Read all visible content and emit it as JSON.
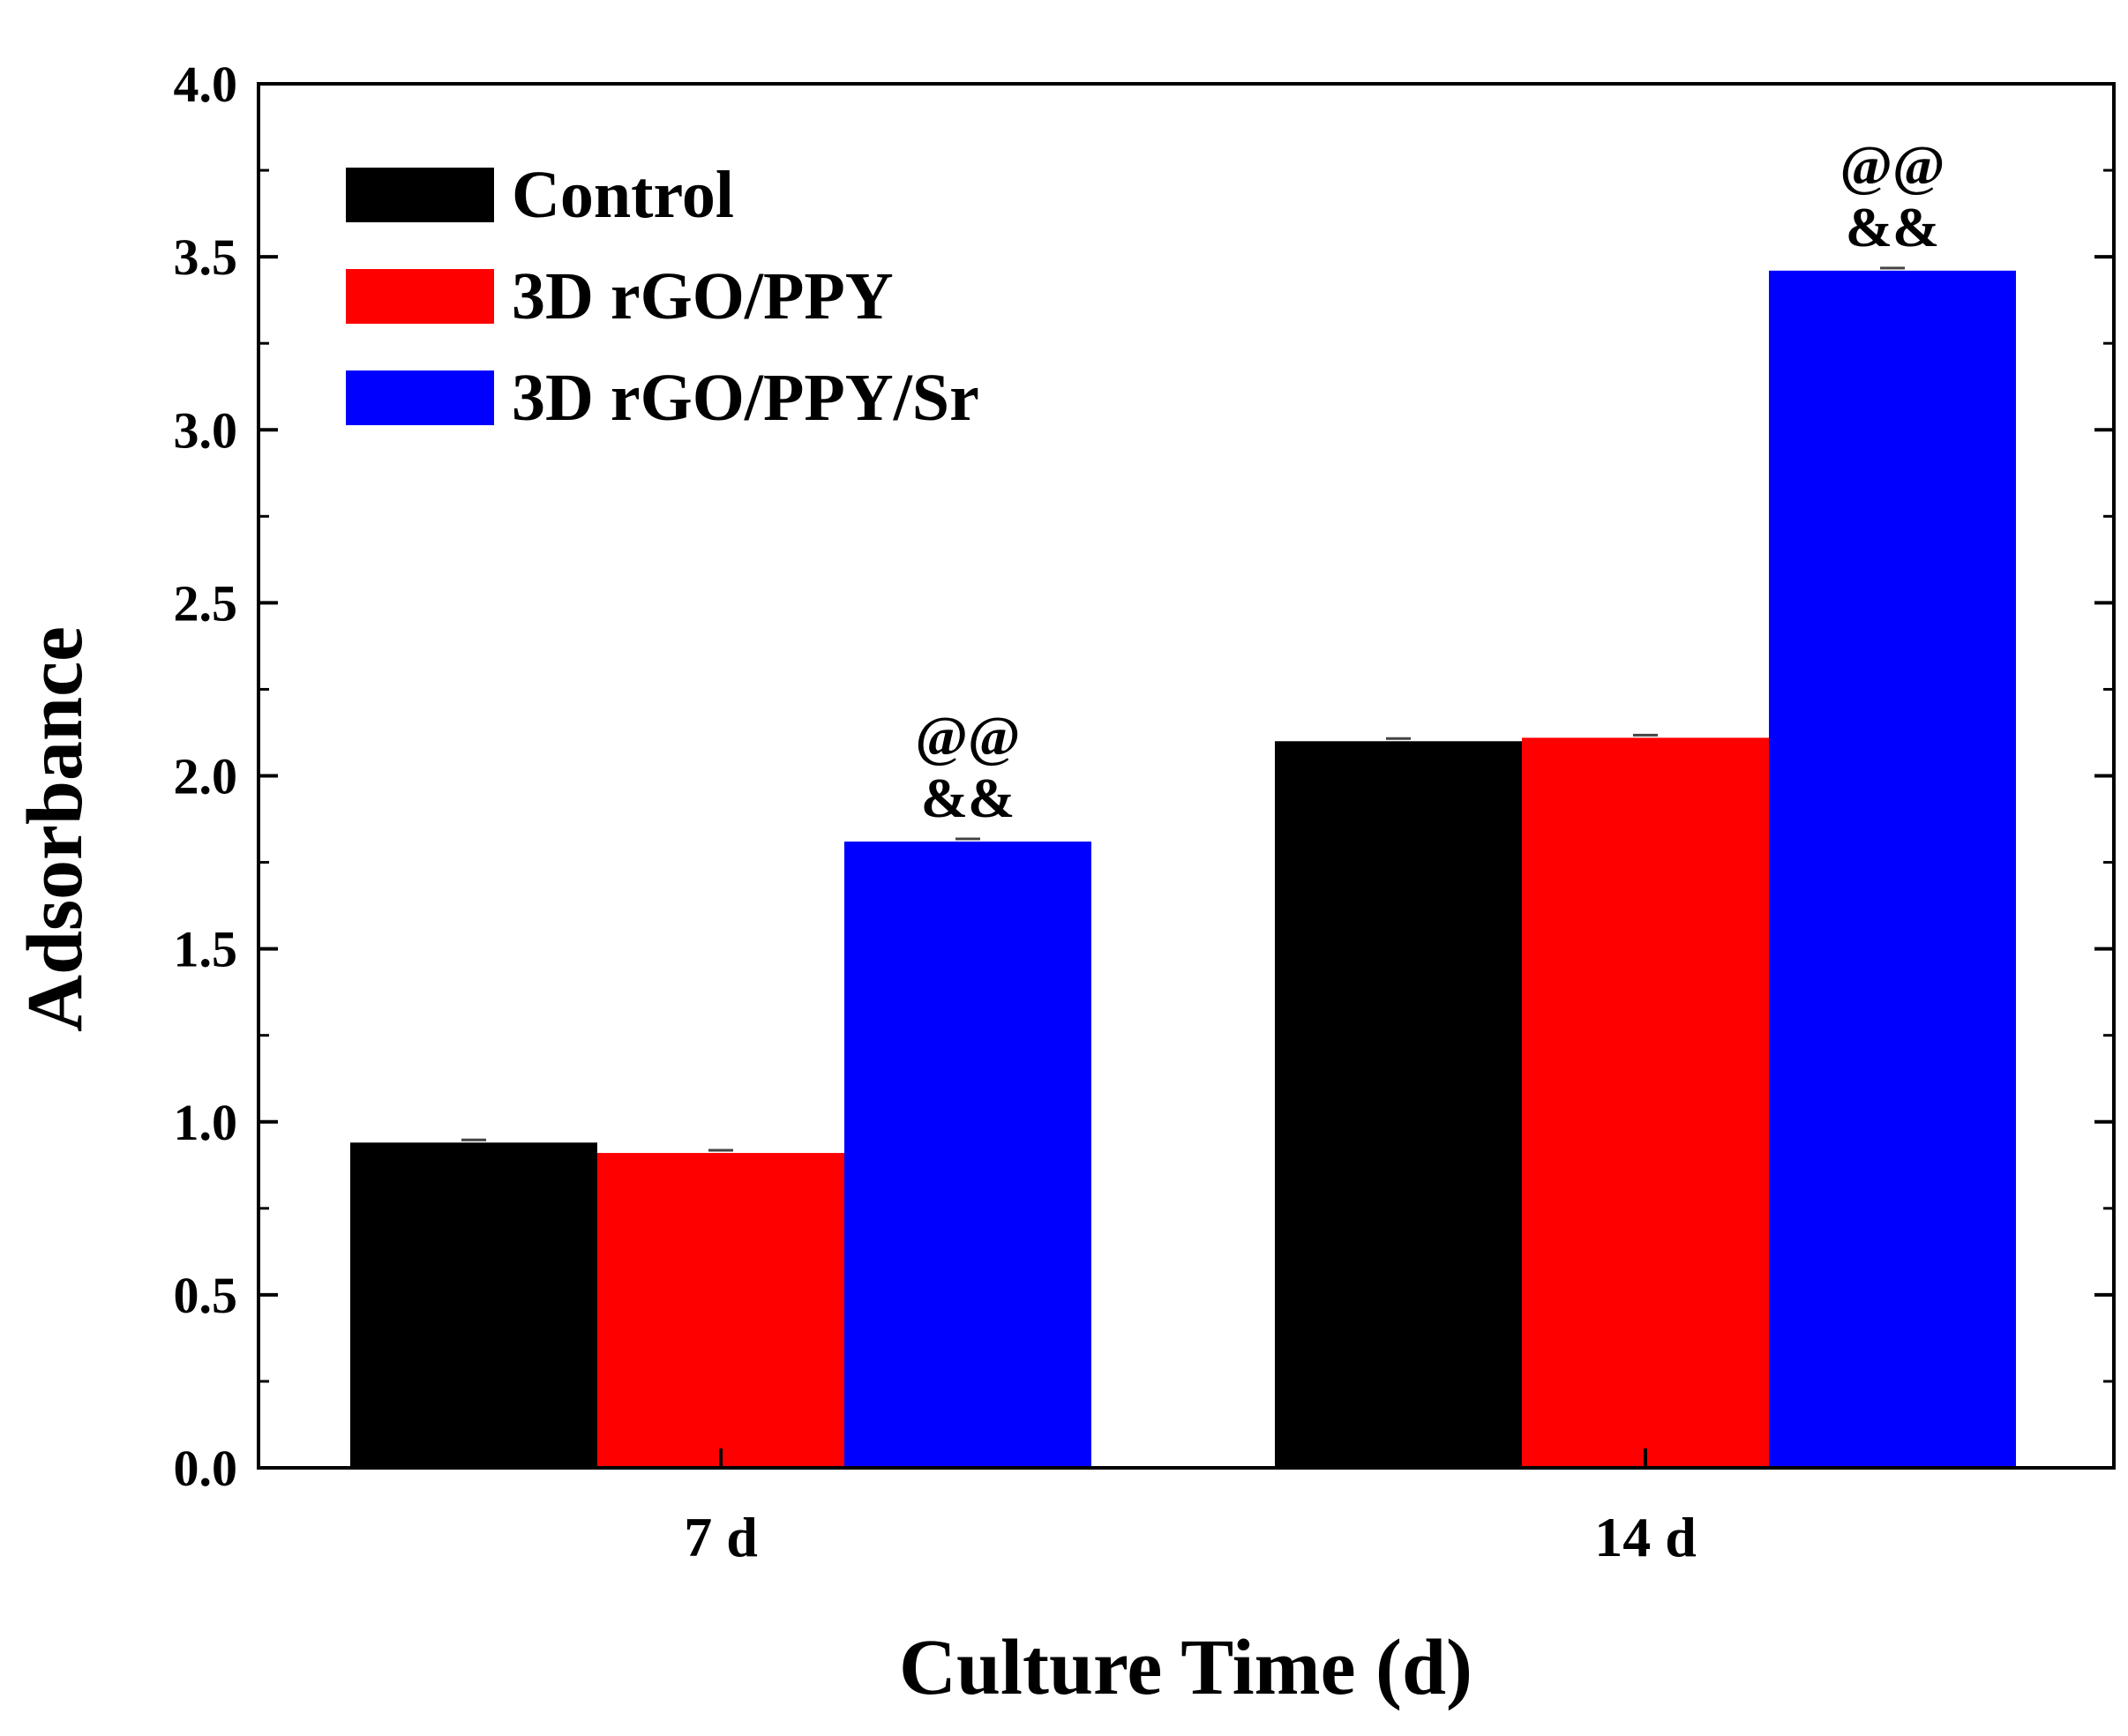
{
  "chart_data": {
    "type": "bar",
    "title": "",
    "xlabel": "Culture Time (d)",
    "ylabel": "Adsorbance",
    "categories": [
      "7 d",
      "14 d"
    ],
    "series": [
      {
        "name": "Control",
        "color": "#000000",
        "values": [
          0.94,
          2.1
        ]
      },
      {
        "name": "3D rGO/PPY",
        "color": "#ff0000",
        "values": [
          0.91,
          2.11
        ]
      },
      {
        "name": "3D rGO/PPY/Sr",
        "color": "#0000ff",
        "values": [
          1.81,
          3.46
        ]
      }
    ],
    "ylim": [
      0,
      4.0
    ],
    "yticks": [
      "0.0",
      "0.5",
      "1.0",
      "1.5",
      "2.0",
      "2.5",
      "3.0",
      "3.5",
      "4.0"
    ],
    "legend_position": "top-left",
    "grid": false,
    "annotations": [
      {
        "category": "7 d",
        "series": "3D rGO/PPY/Sr",
        "lines": [
          "@@",
          "&&"
        ]
      },
      {
        "category": "14 d",
        "series": "3D rGO/PPY/Sr",
        "lines": [
          "@@",
          "&&"
        ]
      }
    ]
  }
}
